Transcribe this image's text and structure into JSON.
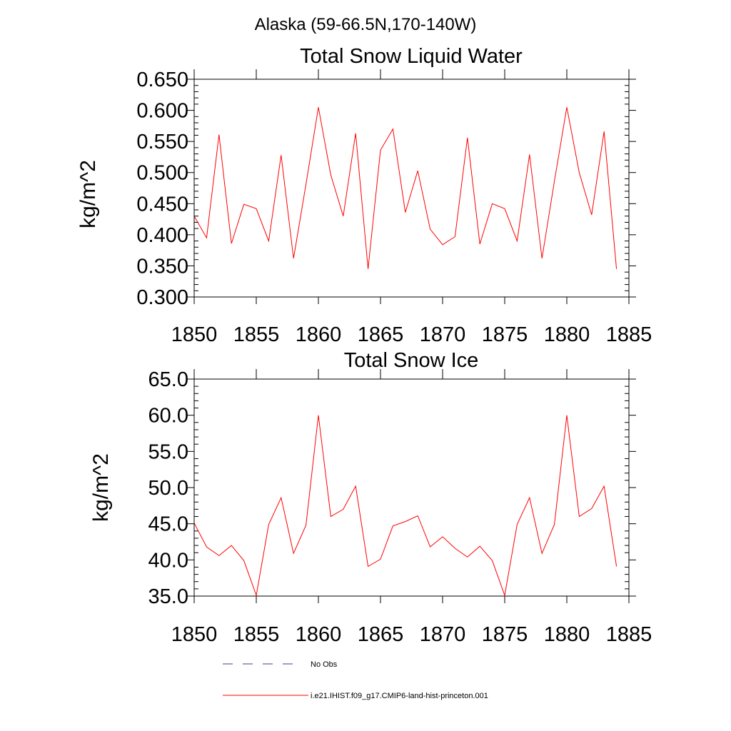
{
  "figure_title": "Alaska (59-66.5N,170-140W)",
  "chart_data": [
    {
      "type": "line",
      "title": "Total Snow Liquid Water",
      "xlabel": "",
      "ylabel": "kg/m^2",
      "xlim": [
        1850,
        1885
      ],
      "ylim": [
        0.3,
        0.65
      ],
      "x_ticks": [
        "1850",
        "1855",
        "1860",
        "1865",
        "1870",
        "1875",
        "1880",
        "1885"
      ],
      "y_ticks": [
        "0.300",
        "0.350",
        "0.400",
        "0.450",
        "0.500",
        "0.550",
        "0.600",
        "0.650"
      ],
      "grid": false,
      "series": [
        {
          "name": "i.e21.IHIST.f09_g17.CMIP6-land-hist-princeton.001",
          "color": "#ff0000",
          "x": [
            1850,
            1851,
            1852,
            1853,
            1854,
            1855,
            1856,
            1857,
            1858,
            1859,
            1860,
            1861,
            1862,
            1863,
            1864,
            1865,
            1866,
            1867,
            1868,
            1869,
            1870,
            1871,
            1872,
            1873,
            1874,
            1875,
            1876,
            1877,
            1878,
            1879,
            1880,
            1881,
            1882,
            1883,
            1884
          ],
          "values": [
            0.43,
            0.395,
            0.561,
            0.386,
            0.449,
            0.442,
            0.39,
            0.528,
            0.362,
            0.481,
            0.605,
            0.496,
            0.43,
            0.563,
            0.345,
            0.536,
            0.57,
            0.436,
            0.503,
            0.409,
            0.384,
            0.397,
            0.556,
            0.385,
            0.45,
            0.442,
            0.39,
            0.529,
            0.362,
            0.486,
            0.605,
            0.5,
            0.432,
            0.566,
            0.345
          ]
        }
      ]
    },
    {
      "type": "line",
      "title": "Total Snow Ice",
      "xlabel": "",
      "ylabel": "kg/m^2",
      "xlim": [
        1850,
        1885
      ],
      "ylim": [
        35,
        65
      ],
      "x_ticks": [
        "1850",
        "1855",
        "1860",
        "1865",
        "1870",
        "1875",
        "1880",
        "1885"
      ],
      "y_ticks": [
        "35.0",
        "40.0",
        "45.0",
        "50.0",
        "55.0",
        "60.0",
        "65.0"
      ],
      "grid": false,
      "series": [
        {
          "name": "i.e21.IHIST.f09_g17.CMIP6-land-hist-princeton.001",
          "color": "#ff0000",
          "x": [
            1850,
            1851,
            1852,
            1853,
            1854,
            1855,
            1856,
            1857,
            1858,
            1859,
            1860,
            1861,
            1862,
            1863,
            1864,
            1865,
            1866,
            1867,
            1868,
            1869,
            1870,
            1871,
            1872,
            1873,
            1874,
            1875,
            1876,
            1877,
            1878,
            1879,
            1880,
            1881,
            1882,
            1883,
            1884
          ],
          "values": [
            45.1,
            41.8,
            40.6,
            42.0,
            39.9,
            35.1,
            44.9,
            48.6,
            40.9,
            44.8,
            60.0,
            46.0,
            47.0,
            50.2,
            39.1,
            40.1,
            44.7,
            45.3,
            46.1,
            41.8,
            43.2,
            41.6,
            40.4,
            41.9,
            39.9,
            35.1,
            44.9,
            48.6,
            40.9,
            44.9,
            60.0,
            46.0,
            47.1,
            50.2,
            39.1
          ]
        }
      ]
    }
  ],
  "legend": [
    {
      "label": "No Obs",
      "color": "#3b3b8a",
      "style": "dashed"
    },
    {
      "label": "i.e21.IHIST.f09_g17.CMIP6-land-hist-princeton.001",
      "color": "#ff0000",
      "style": "solid"
    }
  ]
}
